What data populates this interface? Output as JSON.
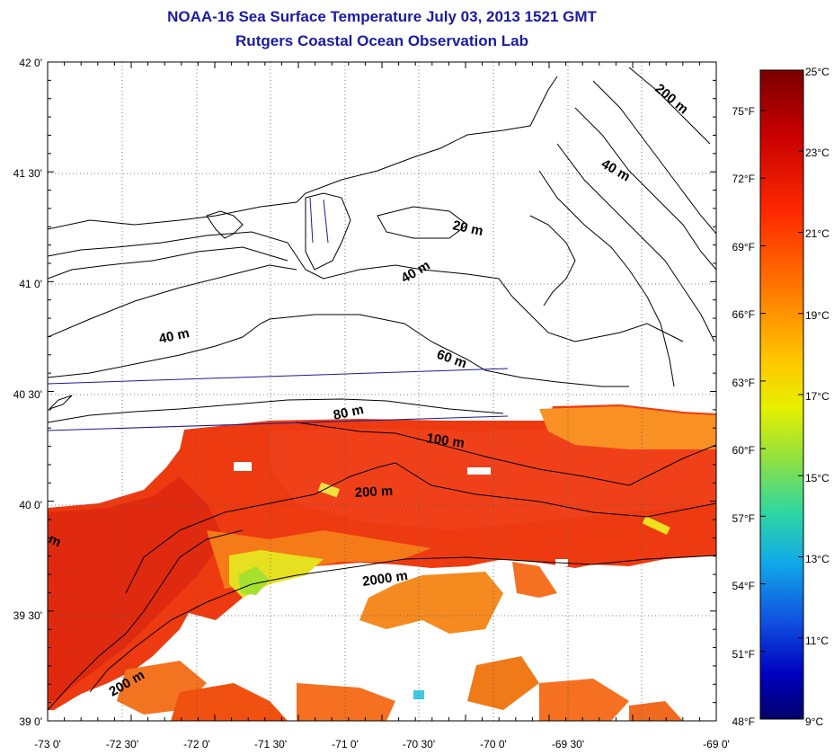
{
  "title": "NOAA-16 Sea Surface Temperature July 03, 2013 1521 GMT",
  "subtitle": "Rutgers Coastal Ocean Observation Lab",
  "map": {
    "lon_labels": [
      "-73 0'",
      "-72 30'",
      "-72 0'",
      "-71 30'",
      "-71 0'",
      "-70 30'",
      "-70 0'",
      "-69 30'",
      "-69 0'"
    ],
    "lat_labels": [
      "42 0'",
      "41 30'",
      "41 0'",
      "40 30'",
      "40 0'",
      "39 30'",
      "39 0'"
    ],
    "contour_labels": [
      "200 m",
      "40 m",
      "20 m",
      "40 m",
      "40 m",
      "60 m",
      "80 m",
      "100 m",
      "200 m",
      "2000 m",
      "200 m",
      "m"
    ]
  },
  "colorbar": {
    "celsius_labels": [
      "25°C",
      "23°C",
      "21°C",
      "19°C",
      "17°C",
      "15°C",
      "13°C",
      "11°C",
      "9°C"
    ],
    "fahrenheit_labels": [
      "75°F",
      "72°F",
      "69°F",
      "66°F",
      "63°F",
      "60°F",
      "57°F",
      "54°F",
      "51°F",
      "48°F"
    ],
    "colors": [
      "#7a0000",
      "#c80000",
      "#ff2a00",
      "#ff7a00",
      "#ffc800",
      "#e6f000",
      "#90e040",
      "#30d8a0",
      "#10a8e8",
      "#1050e0",
      "#0000c0",
      "#00006a"
    ]
  }
}
